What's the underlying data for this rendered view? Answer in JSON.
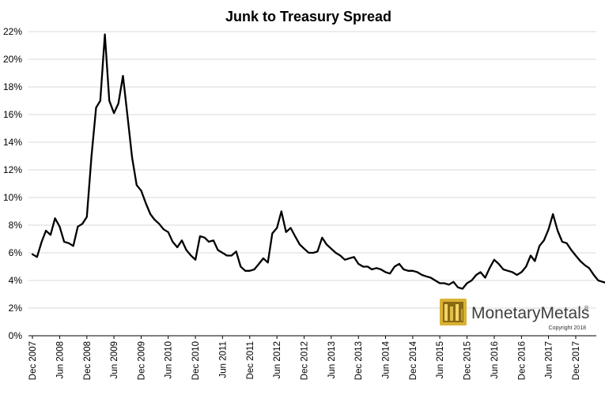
{
  "chart_data": {
    "type": "line",
    "title": "Junk to Treasury Spread",
    "xlabel": "",
    "ylabel": "",
    "ylim": [
      0,
      22
    ],
    "y_ticks": [
      0,
      2,
      4,
      6,
      8,
      10,
      12,
      14,
      16,
      18,
      20,
      22
    ],
    "y_tick_labels": [
      "0%",
      "2%",
      "4%",
      "6%",
      "8%",
      "10%",
      "12%",
      "14%",
      "16%",
      "18%",
      "20%",
      "22%"
    ],
    "y_unit": "%",
    "grid": true,
    "legend": "none",
    "x_tick_labels": [
      "Dec 2007",
      "Jun 2008",
      "Dec 2008",
      "Jun 2009",
      "Dec 2009",
      "Jun 2010",
      "Dec 2010",
      "Jun 2011",
      "Dec 2011",
      "Jun 2012",
      "Dec 2012",
      "Jun 2013",
      "Dec 2013",
      "Jun 2014",
      "Dec 2014",
      "Jun 2015",
      "Dec 2015",
      "Jun 2016",
      "Dec 2016",
      "Jun 2017",
      "Dec 2017"
    ],
    "x_tick_dates": [
      "2007-12",
      "2008-06",
      "2008-12",
      "2009-06",
      "2009-12",
      "2010-06",
      "2010-12",
      "2011-06",
      "2011-12",
      "2012-06",
      "2012-12",
      "2013-06",
      "2013-12",
      "2014-06",
      "2014-12",
      "2015-06",
      "2015-12",
      "2016-06",
      "2016-12",
      "2017-06",
      "2017-12"
    ],
    "series": [
      {
        "color": "#000000",
        "points": [
          [
            "2007-12-01",
            5.9
          ],
          [
            "2008-01-01",
            5.7
          ],
          [
            "2008-02-01",
            6.8
          ],
          [
            "2008-03-01",
            7.6
          ],
          [
            "2008-04-01",
            7.3
          ],
          [
            "2008-05-01",
            8.5
          ],
          [
            "2008-06-01",
            7.9
          ],
          [
            "2008-07-01",
            6.8
          ],
          [
            "2008-08-01",
            6.7
          ],
          [
            "2008-09-01",
            6.5
          ],
          [
            "2008-10-01",
            7.9
          ],
          [
            "2008-11-01",
            8.1
          ],
          [
            "2008-12-01",
            8.6
          ],
          [
            "2009-01-01",
            13.0
          ],
          [
            "2009-02-01",
            16.5
          ],
          [
            "2009-03-01",
            17.0
          ],
          [
            "2009-04-01",
            21.8
          ],
          [
            "2009-05-01",
            17.0
          ],
          [
            "2009-06-01",
            16.1
          ],
          [
            "2009-07-01",
            16.8
          ],
          [
            "2009-08-01",
            18.8
          ],
          [
            "2009-09-01",
            15.8
          ],
          [
            "2009-10-01",
            12.9
          ],
          [
            "2009-11-01",
            10.9
          ],
          [
            "2009-12-01",
            10.5
          ],
          [
            "2010-01-01",
            9.6
          ],
          [
            "2010-02-01",
            8.8
          ],
          [
            "2010-03-01",
            8.4
          ],
          [
            "2010-04-01",
            8.1
          ],
          [
            "2010-05-01",
            7.7
          ],
          [
            "2010-06-01",
            7.5
          ],
          [
            "2010-07-01",
            6.8
          ],
          [
            "2010-08-01",
            6.4
          ],
          [
            "2010-09-01",
            6.9
          ],
          [
            "2010-10-01",
            6.2
          ],
          [
            "2010-11-01",
            5.8
          ],
          [
            "2010-12-01",
            5.5
          ],
          [
            "2011-01-01",
            7.2
          ],
          [
            "2011-02-01",
            7.1
          ],
          [
            "2011-03-01",
            6.8
          ],
          [
            "2011-04-01",
            6.9
          ],
          [
            "2011-05-01",
            6.2
          ],
          [
            "2011-06-01",
            6.0
          ],
          [
            "2011-07-01",
            5.8
          ],
          [
            "2011-08-01",
            5.8
          ],
          [
            "2011-09-01",
            6.1
          ],
          [
            "2011-10-01",
            5.0
          ],
          [
            "2011-11-01",
            4.7
          ],
          [
            "2011-12-01",
            4.7
          ],
          [
            "2012-01-01",
            4.8
          ],
          [
            "2012-02-01",
            5.2
          ],
          [
            "2012-03-01",
            5.6
          ],
          [
            "2012-04-01",
            5.3
          ],
          [
            "2012-05-01",
            7.4
          ],
          [
            "2012-06-01",
            7.8
          ],
          [
            "2012-07-01",
            9.0
          ],
          [
            "2012-08-01",
            7.5
          ],
          [
            "2012-09-01",
            7.8
          ],
          [
            "2012-10-01",
            7.2
          ],
          [
            "2012-11-01",
            6.6
          ],
          [
            "2012-12-01",
            6.3
          ],
          [
            "2013-01-01",
            6.0
          ],
          [
            "2013-02-01",
            6.0
          ],
          [
            "2013-03-01",
            6.1
          ],
          [
            "2013-04-01",
            7.1
          ],
          [
            "2013-05-01",
            6.6
          ],
          [
            "2013-06-01",
            6.3
          ],
          [
            "2013-07-01",
            6.0
          ],
          [
            "2013-08-01",
            5.8
          ],
          [
            "2013-09-01",
            5.5
          ],
          [
            "2013-10-01",
            5.6
          ],
          [
            "2013-11-01",
            5.7
          ],
          [
            "2013-12-01",
            5.2
          ],
          [
            "2014-01-01",
            5.0
          ],
          [
            "2014-02-01",
            5.0
          ],
          [
            "2014-03-01",
            4.8
          ],
          [
            "2014-04-01",
            4.9
          ],
          [
            "2014-05-01",
            4.8
          ],
          [
            "2014-06-01",
            4.6
          ],
          [
            "2014-07-01",
            4.5
          ],
          [
            "2014-08-01",
            5.0
          ],
          [
            "2014-09-01",
            5.2
          ],
          [
            "2014-10-01",
            4.8
          ],
          [
            "2014-11-01",
            4.7
          ],
          [
            "2014-12-01",
            4.7
          ],
          [
            "2015-01-01",
            4.6
          ],
          [
            "2015-02-01",
            4.4
          ],
          [
            "2015-03-01",
            4.3
          ],
          [
            "2015-04-01",
            4.2
          ],
          [
            "2015-05-01",
            4.0
          ],
          [
            "2015-06-01",
            3.8
          ],
          [
            "2015-07-01",
            3.8
          ],
          [
            "2015-08-01",
            3.7
          ],
          [
            "2015-09-01",
            3.9
          ],
          [
            "2015-10-01",
            3.5
          ],
          [
            "2015-11-01",
            3.4
          ],
          [
            "2015-12-01",
            3.8
          ],
          [
            "2016-01-01",
            4.0
          ],
          [
            "2016-02-01",
            4.4
          ],
          [
            "2016-03-01",
            4.6
          ],
          [
            "2016-04-01",
            4.2
          ],
          [
            "2016-05-01",
            4.9
          ],
          [
            "2016-06-01",
            5.5
          ],
          [
            "2016-07-01",
            5.2
          ],
          [
            "2016-08-01",
            4.8
          ],
          [
            "2016-09-01",
            4.7
          ],
          [
            "2016-10-01",
            4.6
          ],
          [
            "2016-11-01",
            4.4
          ],
          [
            "2016-12-01",
            4.6
          ],
          [
            "2017-01-01",
            5.0
          ],
          [
            "2017-02-01",
            5.8
          ],
          [
            "2017-03-01",
            5.4
          ],
          [
            "2017-04-01",
            6.5
          ],
          [
            "2017-05-01",
            6.9
          ],
          [
            "2017-06-01",
            7.7
          ],
          [
            "2017-07-01",
            8.8
          ],
          [
            "2017-08-01",
            7.6
          ],
          [
            "2017-09-01",
            6.8
          ],
          [
            "2017-10-01",
            6.7
          ],
          [
            "2017-11-01",
            6.2
          ],
          [
            "2017-12-01",
            5.8
          ],
          [
            "2018-01-01",
            5.4
          ],
          [
            "2018-02-01",
            5.1
          ],
          [
            "2018-03-01",
            4.9
          ],
          [
            "2018-04-01",
            4.4
          ],
          [
            "2018-05-01",
            4.0
          ],
          [
            "2018-06-01",
            3.9
          ],
          [
            "2018-07-01",
            3.8
          ],
          [
            "2018-08-01",
            3.9
          ],
          [
            "2018-09-01",
            3.8
          ],
          [
            "2018-10-01",
            3.8
          ],
          [
            "2018-11-01",
            3.7
          ],
          [
            "2018-12-01",
            3.6
          ],
          [
            "2019-01-01",
            3.5
          ]
        ]
      }
    ]
  },
  "logo": {
    "text": "MonetaryMetals",
    "registered": "®",
    "copyright": "Copyright 2018",
    "accent_color": "#c9a227"
  }
}
